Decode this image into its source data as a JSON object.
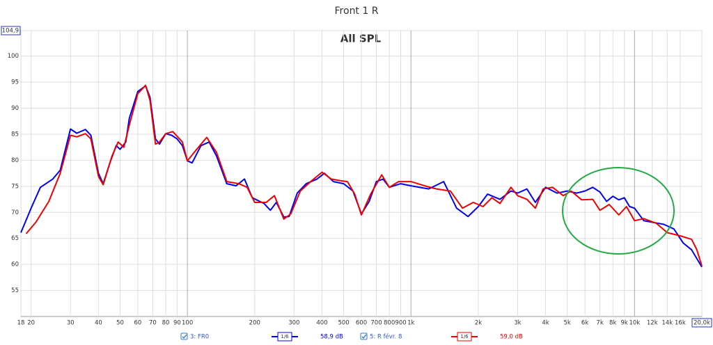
{
  "chart_data": {
    "type": "line",
    "title": "Front 1 R",
    "subtitle": "All SPL",
    "log_x": true,
    "grid": true,
    "xlim": [
      18,
      20000
    ],
    "ylim": [
      50,
      104.9
    ],
    "xticks": [
      18,
      20,
      30,
      40,
      50,
      60,
      70,
      80,
      90,
      100,
      200,
      300,
      400,
      500,
      600,
      700,
      800,
      900,
      {
        "value": 1000,
        "label": "1k"
      },
      {
        "value": 2000,
        "label": "2k"
      },
      {
        "value": 3000,
        "label": "3k"
      },
      {
        "value": 4000,
        "label": "4k"
      },
      {
        "value": 5000,
        "label": "5k"
      },
      {
        "value": 6000,
        "label": "6k"
      },
      {
        "value": 7000,
        "label": "7k"
      },
      {
        "value": 8000,
        "label": "8k"
      },
      {
        "value": 9000,
        "label": "9k"
      },
      {
        "value": 10000,
        "label": "10k"
      },
      {
        "value": 12000,
        "label": "12k"
      },
      {
        "value": 14000,
        "label": "14k"
      },
      {
        "value": 16000,
        "label": "16k"
      },
      {
        "value": 20000,
        "label": "20,0k"
      }
    ],
    "yticks": [
      55,
      60,
      65,
      70,
      75,
      80,
      85,
      90,
      95,
      100,
      {
        "value": 104.9,
        "label": "104,9"
      }
    ],
    "series": [
      {
        "name": "3: FR0",
        "color": "#0000ee",
        "smoothing": "1/6",
        "level": "58,9 dB",
        "x": [
          18,
          20,
          22,
          25,
          27,
          30,
          32,
          35,
          37,
          40,
          42,
          45,
          48,
          50,
          53,
          55,
          60,
          65,
          68,
          72,
          75,
          80,
          85,
          90,
          95,
          100,
          105,
          115,
          125,
          135,
          150,
          165,
          180,
          195,
          220,
          235,
          250,
          270,
          285,
          310,
          340,
          380,
          410,
          450,
          500,
          550,
          600,
          650,
          700,
          750,
          800,
          900,
          1000,
          1200,
          1400,
          1600,
          1800,
          2000,
          2200,
          2500,
          2800,
          3000,
          3300,
          3600,
          4000,
          4500,
          5000,
          5500,
          6000,
          6500,
          7000,
          7500,
          8000,
          8500,
          9000,
          9500,
          10000,
          11000,
          12000,
          13500,
          15000,
          16500,
          18000,
          20000
        ],
        "values": [
          66.1,
          70.8,
          74.8,
          76.4,
          78.1,
          86.0,
          85.2,
          85.9,
          84.8,
          77.5,
          75.5,
          79.5,
          82.8,
          82.1,
          83.5,
          88.1,
          93.2,
          94.3,
          92.1,
          84.1,
          83.1,
          85.1,
          84.8,
          84.1,
          82.8,
          79.9,
          79.5,
          82.8,
          83.5,
          80.8,
          75.5,
          75.1,
          76.4,
          72.8,
          71.7,
          70.4,
          71.9,
          69.1,
          69.2,
          73.7,
          75.5,
          76.4,
          77.5,
          75.9,
          75.5,
          74.1,
          69.7,
          72.1,
          75.9,
          76.4,
          74.8,
          75.5,
          75.1,
          74.5,
          75.9,
          70.8,
          69.2,
          71.1,
          73.5,
          72.5,
          74.1,
          73.7,
          74.5,
          71.9,
          74.8,
          73.7,
          74.1,
          73.7,
          74.1,
          74.8,
          73.9,
          72.1,
          73.1,
          72.4,
          72.8,
          71.1,
          70.8,
          68.4,
          68.1,
          67.7,
          66.8,
          64.1,
          62.8,
          59.5
        ]
      },
      {
        "name": "5: R févr. 8",
        "color": "#ee0000",
        "smoothing": "1/6",
        "level": "59,0 dB",
        "x": [
          19,
          21,
          24,
          27,
          30,
          32,
          35,
          37,
          40,
          42,
          46,
          49,
          52,
          55,
          60,
          65,
          68,
          72,
          75,
          80,
          86,
          95,
          100,
          110,
          122,
          135,
          150,
          170,
          185,
          200,
          225,
          245,
          270,
          290,
          320,
          360,
          400,
          440,
          480,
          520,
          560,
          600,
          660,
          740,
          800,
          880,
          1000,
          1150,
          1300,
          1500,
          1700,
          1900,
          2100,
          2300,
          2500,
          2800,
          3000,
          3300,
          3600,
          3900,
          4300,
          4800,
          5200,
          5800,
          6500,
          7000,
          7700,
          8500,
          9200,
          10000,
          11000,
          12500,
          14000,
          16000,
          18000,
          19000,
          20000
        ],
        "values": [
          65.9,
          68.1,
          72.1,
          77.5,
          84.8,
          84.5,
          85.1,
          84.1,
          76.9,
          75.3,
          80.8,
          83.5,
          82.5,
          86.8,
          92.8,
          94.4,
          91.5,
          83.1,
          83.5,
          85.1,
          85.5,
          83.5,
          79.9,
          82.1,
          84.4,
          81.5,
          75.9,
          75.5,
          74.8,
          71.9,
          71.9,
          73.2,
          68.7,
          69.7,
          74.1,
          76.1,
          77.7,
          76.4,
          76.1,
          75.9,
          73.5,
          69.5,
          73.5,
          77.2,
          74.8,
          75.9,
          75.9,
          75.1,
          74.5,
          74.1,
          70.8,
          71.9,
          71.1,
          72.8,
          71.7,
          74.8,
          73.2,
          72.5,
          70.8,
          74.5,
          74.8,
          73.2,
          74.1,
          72.4,
          72.5,
          70.4,
          71.5,
          69.5,
          71.1,
          68.4,
          68.8,
          67.9,
          66.1,
          65.5,
          64.8,
          62.8,
          59.7
        ]
      }
    ]
  }
}
